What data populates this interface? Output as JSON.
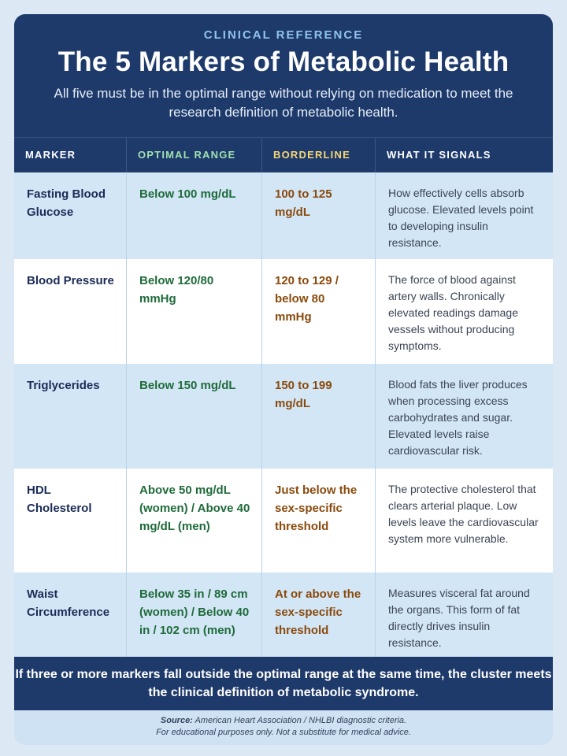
{
  "header": {
    "eyebrow": "CLINICAL REFERENCE",
    "title": "The 5 Markers of Metabolic Health",
    "subtitle": "All five must be in the optimal range without relying on medication to meet the research definition of metabolic health."
  },
  "columns": [
    "MARKER",
    "OPTIMAL RANGE",
    "BORDERLINE",
    "WHAT IT SIGNALS"
  ],
  "rows": [
    {
      "marker": "Fasting Blood Glucose",
      "optimal": "Below 100 mg/dL",
      "borderline": "100 to 125 mg/dL",
      "signal": "How effectively cells absorb glucose. Elevated levels point to developing insulin resistance."
    },
    {
      "marker": "Blood Pressure",
      "optimal": "Below 120/80 mmHg",
      "borderline": "120 to 129 / below 80 mmHg",
      "signal": "The force of blood against artery walls. Chronically elevated readings damage vessels without producing symptoms."
    },
    {
      "marker": "Triglycerides",
      "optimal": "Below 150 mg/dL",
      "borderline": "150 to 199 mg/dL",
      "signal": "Blood fats the liver produces when processing excess carbohydrates and sugar. Elevated levels raise cardiovascular risk."
    },
    {
      "marker": "HDL Cholesterol",
      "optimal": "Above 50 mg/dL (women) / Above 40 mg/dL (men)",
      "borderline": "Just below the sex-specific threshold",
      "signal": "The protective cholesterol that clears arterial plaque. Low levels leave the cardiovascular system more vulnerable."
    },
    {
      "marker": "Waist Circumference",
      "optimal": "Below 35 in / 89 cm (women) / Below 40 in / 102 cm (men)",
      "borderline": "At or above the sex-specific threshold",
      "signal": "Measures visceral fat around the organs. This form of fat directly drives insulin resistance."
    }
  ],
  "footer": "If three or more markers fall outside the optimal range at the same time, the cluster meets the clinical definition of metabolic syndrome.",
  "source": {
    "label": "Source:",
    "text": "American Heart Association / NHLBI diagnostic criteria.",
    "disclaimer": "For educational purposes only. Not a substitute for medical advice."
  }
}
